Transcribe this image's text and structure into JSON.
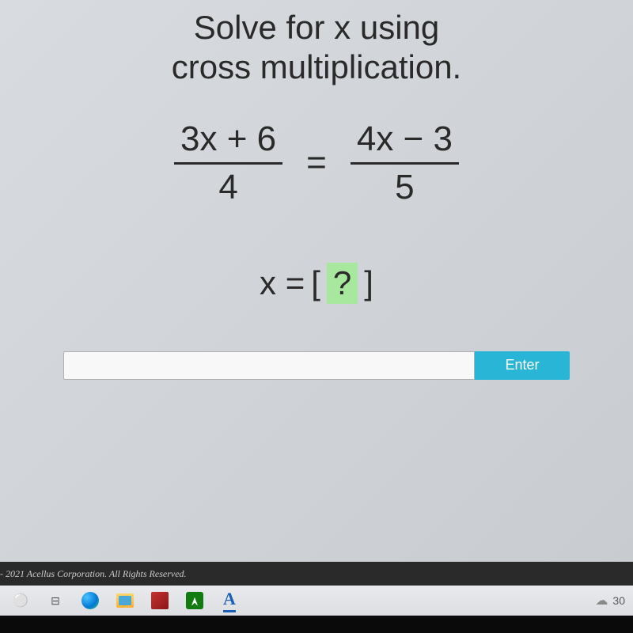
{
  "title_line1": "Solve for x using",
  "title_line2": "cross multiplication.",
  "equation": {
    "left_numerator": "3x + 6",
    "left_denominator": "4",
    "equals": "=",
    "right_numerator": "4x − 3",
    "right_denominator": "5"
  },
  "answer": {
    "prefix": "x =",
    "bracket_open": "[",
    "placeholder": "?",
    "bracket_close": "]"
  },
  "enter_button": "Enter",
  "copyright": "- 2021 Acellus Corporation.  All Rights Reserved.",
  "taskbar": {
    "search_glyph": "⚪",
    "taskview_glyph": "⊟",
    "acellus_letter": "A",
    "cloud_glyph": "☁",
    "temp": "30"
  },
  "colors": {
    "answer_highlight": "#a8e89e",
    "enter_button_bg": "#29b6d6",
    "text": "#2a2a2a"
  }
}
